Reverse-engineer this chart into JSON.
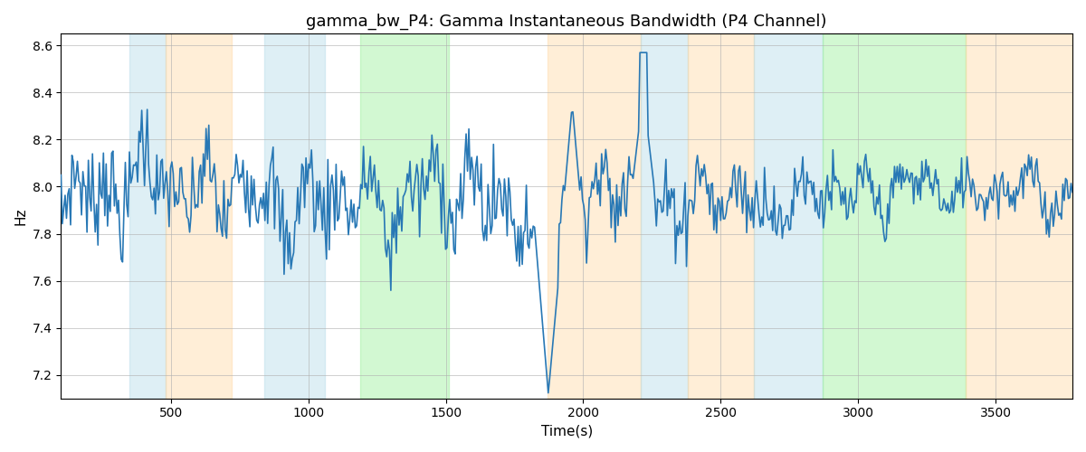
{
  "title": "gamma_bw_P4: Gamma Instantaneous Bandwidth (P4 Channel)",
  "xlabel": "Time(s)",
  "ylabel": "Hz",
  "ylim": [
    7.1,
    8.65
  ],
  "xlim": [
    100,
    3780
  ],
  "bg_bands": [
    {
      "xmin": 350,
      "xmax": 480,
      "color": "#add8e6",
      "alpha": 0.4
    },
    {
      "xmin": 480,
      "xmax": 720,
      "color": "#ffd59b",
      "alpha": 0.4
    },
    {
      "xmin": 840,
      "xmax": 1060,
      "color": "#add8e6",
      "alpha": 0.4
    },
    {
      "xmin": 1190,
      "xmax": 1510,
      "color": "#90ee90",
      "alpha": 0.4
    },
    {
      "xmin": 1870,
      "xmax": 2210,
      "color": "#ffd59b",
      "alpha": 0.4
    },
    {
      "xmin": 2210,
      "xmax": 2380,
      "color": "#add8e6",
      "alpha": 0.4
    },
    {
      "xmin": 2380,
      "xmax": 2620,
      "color": "#ffd59b",
      "alpha": 0.4
    },
    {
      "xmin": 2620,
      "xmax": 2870,
      "color": "#add8e6",
      "alpha": 0.4
    },
    {
      "xmin": 2870,
      "xmax": 3390,
      "color": "#90ee90",
      "alpha": 0.4
    },
    {
      "xmin": 3390,
      "xmax": 3780,
      "color": "#ffd59b",
      "alpha": 0.4
    }
  ],
  "line_color": "#2878b5",
  "line_width": 1.2,
  "grid_color": "#b0b0b0",
  "grid_alpha": 0.6,
  "title_fontsize": 13,
  "tick_fontsize": 10,
  "label_fontsize": 11,
  "seed": 7,
  "n_points": 740,
  "t_start": 100,
  "t_end": 3780,
  "base_value": 7.97,
  "noise_std": 0.1
}
